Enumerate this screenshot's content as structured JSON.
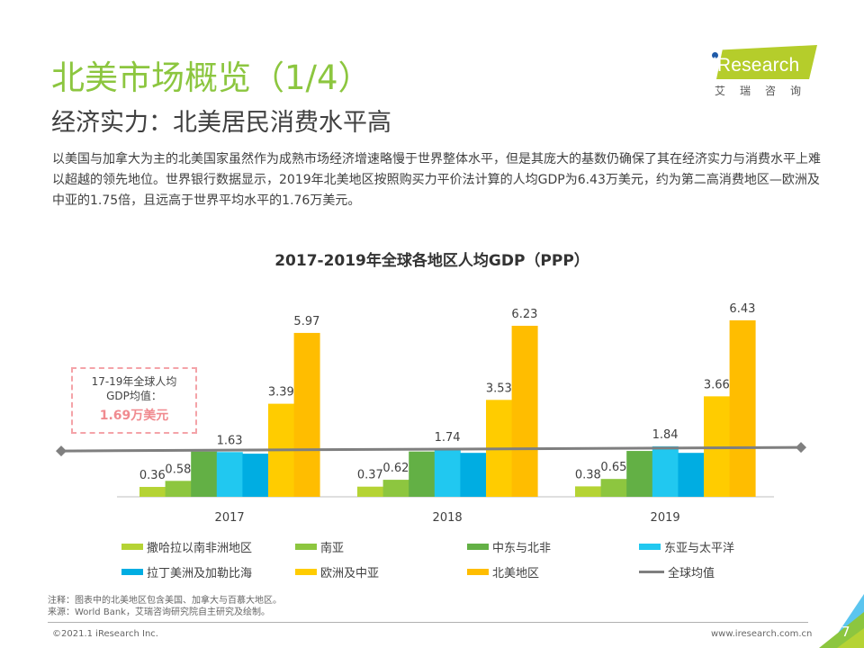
{
  "header": {
    "title": "北美市场概览（1/4）",
    "subtitle": "经济实力：北美居民消费水平高"
  },
  "logo": {
    "word": "iResearch",
    "cn": "艾瑞咨询",
    "colors": {
      "bg": "#b5cd2b",
      "dot": "#1e5aa8"
    }
  },
  "intro": "以美国与加拿大为主的北美国家虽然作为成熟市场经济增速略慢于世界整体水平，但是其庞大的基数仍确保了其在经济实力与消费水平上难以超越的领先地位。世界银行数据显示，2019年北美地区按照购买力平价法计算的人均GDP为6.43万美元，约为第二高消费地区—欧洲及中亚的1.75倍，且远高于世界平均水平的1.76万美元。",
  "callout": {
    "line1": "17-19年全球人均",
    "line2": "GDP均值：",
    "value": "1.69万美元"
  },
  "chart_data": {
    "type": "bar",
    "title": "2017-2019年全球各地区人均GDP（PPP）",
    "xlabel": "",
    "ylabel": "",
    "unit": "万美元",
    "categories": [
      "2017",
      "2018",
      "2019"
    ],
    "ylim": [
      0,
      7
    ],
    "grid": false,
    "legend_position": "bottom",
    "series": [
      {
        "name": "撒哈拉以南非洲地区",
        "color": "#b5d334",
        "values": [
          0.36,
          0.37,
          0.38
        ],
        "labeled": true
      },
      {
        "name": "南亚",
        "color": "#8dc63f",
        "values": [
          0.58,
          0.62,
          0.65
        ],
        "labeled": true
      },
      {
        "name": "中东与北非",
        "color": "#63b045",
        "values": [
          1.65,
          1.65,
          1.67
        ],
        "labeled": false
      },
      {
        "name": "东亚与太平洋",
        "color": "#21c8f0",
        "values": [
          1.63,
          1.74,
          1.84
        ],
        "labeled": true
      },
      {
        "name": "拉丁美洲及加勒比海",
        "color": "#00ade2",
        "values": [
          1.57,
          1.6,
          1.6
        ],
        "labeled": false
      },
      {
        "name": "欧洲及中亚",
        "color": "#ffcc00",
        "values": [
          3.39,
          3.53,
          3.66
        ],
        "labeled": true
      },
      {
        "name": "北美地区",
        "color": "#ffbd00",
        "values": [
          5.97,
          6.23,
          6.43
        ],
        "labeled": true
      }
    ],
    "line_series": {
      "name": "全球均值",
      "color": "#7f7f7f",
      "start": 1.67,
      "end": 1.8
    }
  },
  "notes": {
    "note": "注释：图表中的北美地区包含美国、加拿大与百慕大地区。",
    "source": "来源：World Bank，艾瑞咨询研究院自主研究及绘制。"
  },
  "footer": {
    "copyright": "©2021.1 iResearch Inc.",
    "site": "www.iresearch.com.cn",
    "page": "7"
  }
}
